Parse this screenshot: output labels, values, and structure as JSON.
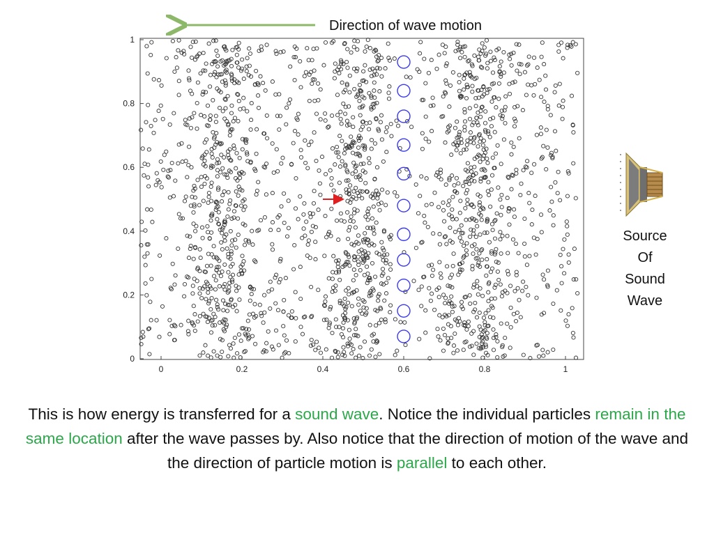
{
  "header": {
    "wave_direction_label": "Direction of wave motion",
    "arrow_color": "#8db86a"
  },
  "chart_data": {
    "type": "scatter",
    "title": "",
    "xlabel": "",
    "ylabel": "",
    "xlim": [
      0,
      1
    ],
    "ylim": [
      0,
      1
    ],
    "x_ticks": [
      "0",
      "0.2",
      "0.4",
      "0.6",
      "0.8",
      "1"
    ],
    "y_ticks": [
      "0",
      "0.2",
      "0.4",
      "0.6",
      "0.8",
      "1"
    ],
    "grid": false,
    "legend": "none",
    "particle_color": "#333333",
    "marked_particle_color": "#3a3aee",
    "marked_particles_x": 0.6,
    "marked_particles_y": [
      0.07,
      0.15,
      0.23,
      0.31,
      0.39,
      0.48,
      0.58,
      0.67,
      0.76,
      0.84,
      0.93
    ],
    "compression_band_centers_x": [
      0.15,
      0.49,
      0.78
    ],
    "particle_motion_arrow": {
      "x_from": 0.4,
      "x_to": 0.45,
      "y": 0.5,
      "color": "#e02020"
    }
  },
  "source": {
    "icon": "speaker-icon",
    "label_lines": [
      "Source",
      "Of",
      "Sound",
      "Wave"
    ]
  },
  "caption": {
    "p1": "This is how energy is transferred for a ",
    "h1": "sound wave",
    "p2": ".  Notice the individual particles ",
    "h2": "remain in the same location",
    "p3": " after the wave passes by.  Also notice that the direction of motion of the wave and the direction of particle motion is ",
    "h3": "parallel",
    "p4": " to each other.",
    "highlight_color": "#2ca74a"
  }
}
